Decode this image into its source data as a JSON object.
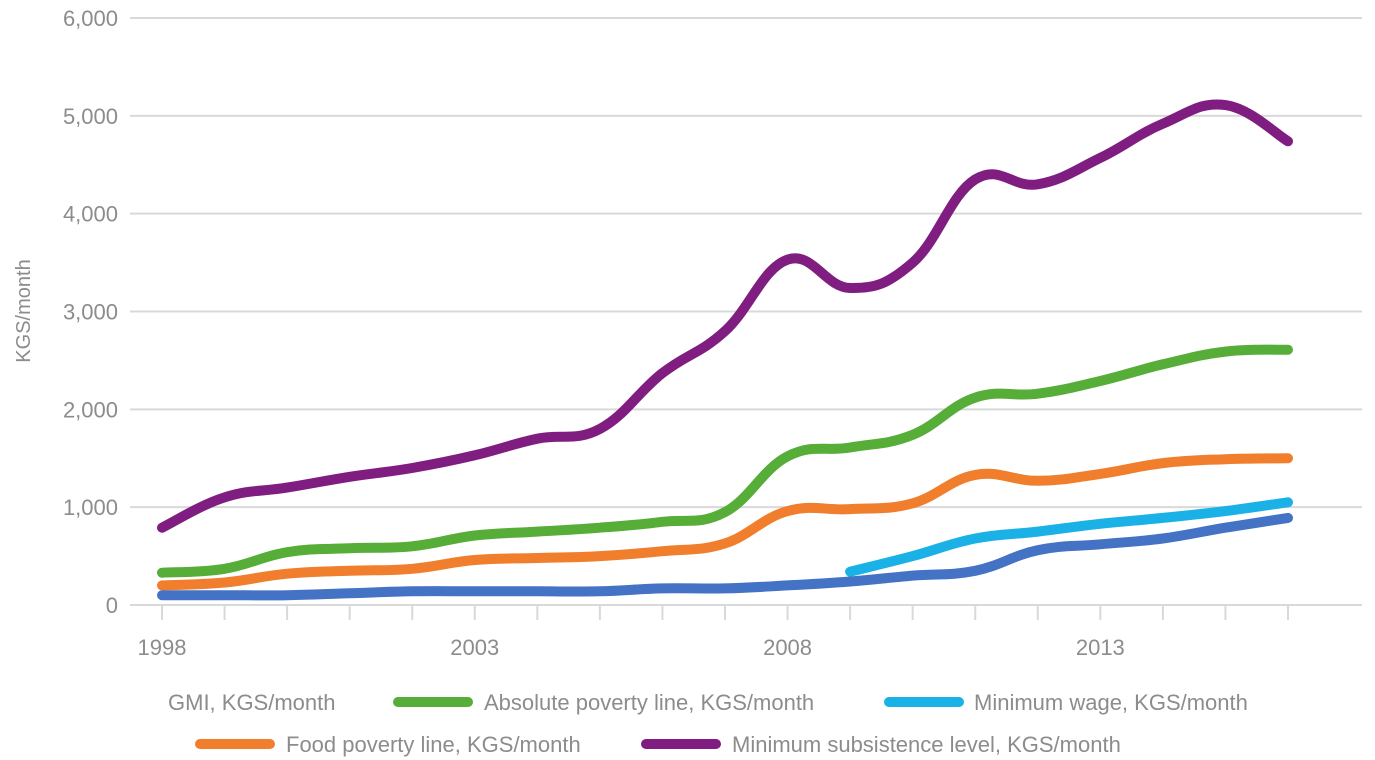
{
  "chart_data": {
    "type": "line",
    "ylabel": "KGS/month",
    "ylim": [
      0,
      6000
    ],
    "y_ticks": [
      0,
      1000,
      2000,
      3000,
      4000,
      5000,
      6000
    ],
    "y_tick_labels": [
      "0",
      "1,000",
      "2,000",
      "3,000",
      "4,000",
      "5,000",
      "6,000"
    ],
    "x_ticks": [
      1998,
      2003,
      2008,
      2013
    ],
    "x_tick_labels": [
      "1998",
      "2003",
      "2008",
      "2013"
    ],
    "xlim": [
      1997.5,
      2017.2
    ],
    "grid": true,
    "legend_position": "bottom",
    "series": [
      {
        "name": "GMI, KGS/month",
        "color": "#4472c4",
        "x": [
          1998,
          1999,
          2000,
          2001,
          2002,
          2003,
          2004,
          2005,
          2006,
          2007,
          2008,
          2009,
          2010,
          2011,
          2012,
          2013,
          2014,
          2015,
          2016
        ],
        "values": [
          100,
          100,
          100,
          120,
          140,
          140,
          140,
          140,
          170,
          170,
          200,
          240,
          300,
          350,
          560,
          620,
          680,
          790,
          890
        ]
      },
      {
        "name": "Absolute poverty line, KGS/month",
        "color": "#56ad37",
        "x": [
          1998,
          1999,
          2000,
          2001,
          2002,
          2003,
          2004,
          2005,
          2006,
          2007,
          2008,
          2009,
          2010,
          2011,
          2012,
          2013,
          2014,
          2015,
          2016
        ],
        "values": [
          330,
          370,
          540,
          580,
          600,
          710,
          750,
          790,
          850,
          950,
          1520,
          1610,
          1740,
          2120,
          2160,
          2290,
          2460,
          2590,
          2610
        ]
      },
      {
        "name": "Minimum wage, KGS/month",
        "color": "#1ab1e6",
        "x": [
          2009,
          2010,
          2011,
          2012,
          2013,
          2014,
          2015,
          2016
        ],
        "values": [
          340,
          500,
          680,
          750,
          830,
          890,
          960,
          1050
        ]
      },
      {
        "name": "Food poverty line, KGS/month",
        "color": "#f07e2c",
        "x": [
          1998,
          1999,
          2000,
          2001,
          2002,
          2003,
          2004,
          2005,
          2006,
          2007,
          2008,
          2009,
          2010,
          2011,
          2012,
          2013,
          2014,
          2015,
          2016
        ],
        "values": [
          200,
          230,
          320,
          350,
          370,
          460,
          480,
          500,
          550,
          630,
          960,
          980,
          1040,
          1330,
          1270,
          1340,
          1450,
          1490,
          1500
        ]
      },
      {
        "name": "Minimum subsistence level, KGS/month",
        "color": "#7f1d81",
        "x": [
          1998,
          1999,
          2000,
          2001,
          2002,
          2003,
          2004,
          2005,
          2006,
          2007,
          2008,
          2009,
          2010,
          2011,
          2012,
          2013,
          2014,
          2015,
          2016
        ],
        "values": [
          790,
          1100,
          1200,
          1310,
          1400,
          1530,
          1700,
          1800,
          2370,
          2800,
          3530,
          3240,
          3500,
          4350,
          4300,
          4570,
          4920,
          5110,
          4740
        ]
      }
    ]
  }
}
